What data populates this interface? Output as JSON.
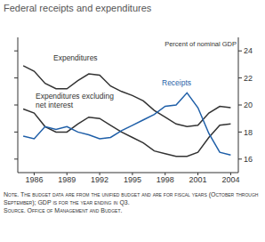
{
  "chart_data": {
    "type": "line",
    "title": "Federal receipts and expenditures",
    "y_label": "Percent of nominal GDP",
    "x": [
      1985,
      1986,
      1987,
      1988,
      1989,
      1990,
      1991,
      1992,
      1993,
      1994,
      1995,
      1996,
      1997,
      1998,
      1999,
      2000,
      2001,
      2002,
      2003,
      2004
    ],
    "series": [
      {
        "name": "Expenditures",
        "color": "#333333",
        "values": [
          22.9,
          22.5,
          21.6,
          21.2,
          21.2,
          21.8,
          22.3,
          22.2,
          21.4,
          21.0,
          20.7,
          20.3,
          19.6,
          19.1,
          18.6,
          18.4,
          18.5,
          19.4,
          19.9,
          19.8
        ]
      },
      {
        "name": "Expenditures excluding net interest",
        "color": "#333333",
        "values": [
          19.7,
          19.4,
          18.4,
          18.0,
          18.0,
          18.6,
          19.1,
          19.0,
          18.5,
          18.0,
          17.6,
          17.2,
          16.6,
          16.4,
          16.2,
          16.2,
          16.5,
          17.6,
          18.5,
          18.6
        ]
      },
      {
        "name": "Receipts",
        "color": "#1f5fa8",
        "values": [
          17.7,
          17.5,
          18.4,
          18.2,
          18.4,
          18.0,
          17.8,
          17.5,
          17.6,
          18.1,
          18.5,
          18.9,
          19.3,
          19.9,
          20.0,
          20.9,
          19.8,
          17.9,
          16.5,
          16.3
        ]
      }
    ],
    "xlim": [
      1984.5,
      2004.7
    ],
    "xticks": [
      1986,
      1989,
      1992,
      1995,
      1998,
      2001,
      2004
    ],
    "ylim": [
      15,
      25
    ],
    "yticks": [
      16,
      18,
      20,
      22,
      24
    ],
    "note": "Note. The budget data are from the unified budget and are for fiscal years (October through September); GDP is for the year ending in Q3.",
    "source": "Source. Office of Management and Budget."
  }
}
